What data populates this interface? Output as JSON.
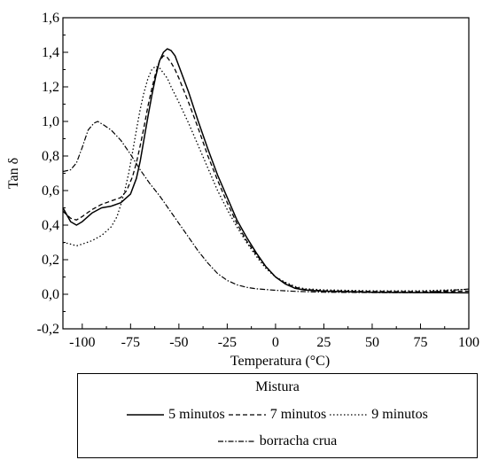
{
  "chart_data": {
    "type": "line",
    "title": "",
    "xlabel": "Temperatura (°C)",
    "ylabel": "Tan δ",
    "xlim": [
      -110,
      100
    ],
    "ylim": [
      -0.2,
      1.6
    ],
    "xticks": [
      -100,
      -75,
      -50,
      -25,
      0,
      25,
      50,
      75,
      100
    ],
    "xtick_labels": [
      "-100",
      "-75",
      "-50",
      "-25",
      "0",
      "25",
      "50",
      "75",
      "100"
    ],
    "yticks": [
      -0.2,
      0.0,
      0.2,
      0.4,
      0.6,
      0.8,
      1.0,
      1.2,
      1.4,
      1.6
    ],
    "ytick_labels": [
      "-0,2",
      "0,0",
      "0,2",
      "0,4",
      "0,6",
      "0,8",
      "1,0",
      "1,2",
      "1,4",
      "1,6"
    ],
    "grid": false,
    "legend_title": "Mistura",
    "legend_position": "below",
    "series": [
      {
        "name": "5 minutos",
        "dash": "solid",
        "points": [
          [
            -110,
            0.5
          ],
          [
            -106,
            0.42
          ],
          [
            -103,
            0.4
          ],
          [
            -100,
            0.42
          ],
          [
            -95,
            0.47
          ],
          [
            -90,
            0.5
          ],
          [
            -85,
            0.51
          ],
          [
            -80,
            0.53
          ],
          [
            -75,
            0.58
          ],
          [
            -72,
            0.67
          ],
          [
            -70,
            0.77
          ],
          [
            -68,
            0.9
          ],
          [
            -66,
            1.03
          ],
          [
            -64,
            1.15
          ],
          [
            -62,
            1.26
          ],
          [
            -60,
            1.35
          ],
          [
            -58,
            1.4
          ],
          [
            -56,
            1.42
          ],
          [
            -54,
            1.41
          ],
          [
            -52,
            1.38
          ],
          [
            -50,
            1.32
          ],
          [
            -45,
            1.17
          ],
          [
            -40,
            1.0
          ],
          [
            -35,
            0.84
          ],
          [
            -30,
            0.69
          ],
          [
            -25,
            0.56
          ],
          [
            -20,
            0.43
          ],
          [
            -15,
            0.33
          ],
          [
            -10,
            0.24
          ],
          [
            -5,
            0.16
          ],
          [
            0,
            0.1
          ],
          [
            5,
            0.06
          ],
          [
            10,
            0.035
          ],
          [
            15,
            0.025
          ],
          [
            25,
            0.018
          ],
          [
            50,
            0.012
          ],
          [
            75,
            0.01
          ],
          [
            100,
            0.008
          ]
        ]
      },
      {
        "name": "7 minutos",
        "dash": "dashed",
        "points": [
          [
            -110,
            0.48
          ],
          [
            -106,
            0.44
          ],
          [
            -103,
            0.43
          ],
          [
            -100,
            0.45
          ],
          [
            -95,
            0.49
          ],
          [
            -90,
            0.52
          ],
          [
            -85,
            0.54
          ],
          [
            -80,
            0.56
          ],
          [
            -77,
            0.6
          ],
          [
            -74,
            0.68
          ],
          [
            -72,
            0.76
          ],
          [
            -70,
            0.86
          ],
          [
            -68,
            0.97
          ],
          [
            -66,
            1.09
          ],
          [
            -64,
            1.19
          ],
          [
            -62,
            1.28
          ],
          [
            -60,
            1.35
          ],
          [
            -58,
            1.38
          ],
          [
            -56,
            1.37
          ],
          [
            -54,
            1.34
          ],
          [
            -52,
            1.3
          ],
          [
            -50,
            1.25
          ],
          [
            -45,
            1.11
          ],
          [
            -40,
            0.96
          ],
          [
            -35,
            0.8
          ],
          [
            -30,
            0.66
          ],
          [
            -25,
            0.53
          ],
          [
            -20,
            0.41
          ],
          [
            -15,
            0.31
          ],
          [
            -10,
            0.23
          ],
          [
            -5,
            0.16
          ],
          [
            0,
            0.1
          ],
          [
            5,
            0.065
          ],
          [
            10,
            0.04
          ],
          [
            15,
            0.028
          ],
          [
            25,
            0.02
          ],
          [
            50,
            0.016
          ],
          [
            75,
            0.015
          ],
          [
            100,
            0.018
          ]
        ]
      },
      {
        "name": "9 minutos",
        "dash": "dotted",
        "points": [
          [
            -110,
            0.3
          ],
          [
            -106,
            0.29
          ],
          [
            -103,
            0.28
          ],
          [
            -100,
            0.29
          ],
          [
            -95,
            0.31
          ],
          [
            -90,
            0.34
          ],
          [
            -85,
            0.39
          ],
          [
            -82,
            0.45
          ],
          [
            -80,
            0.52
          ],
          [
            -78,
            0.6
          ],
          [
            -76,
            0.7
          ],
          [
            -74,
            0.82
          ],
          [
            -72,
            0.95
          ],
          [
            -70,
            1.07
          ],
          [
            -68,
            1.17
          ],
          [
            -66,
            1.25
          ],
          [
            -64,
            1.3
          ],
          [
            -62,
            1.32
          ],
          [
            -60,
            1.31
          ],
          [
            -58,
            1.28
          ],
          [
            -56,
            1.25
          ],
          [
            -54,
            1.2
          ],
          [
            -50,
            1.11
          ],
          [
            -45,
            0.99
          ],
          [
            -40,
            0.86
          ],
          [
            -35,
            0.73
          ],
          [
            -30,
            0.6
          ],
          [
            -25,
            0.49
          ],
          [
            -20,
            0.39
          ],
          [
            -15,
            0.3
          ],
          [
            -10,
            0.22
          ],
          [
            -5,
            0.15
          ],
          [
            0,
            0.1
          ],
          [
            5,
            0.07
          ],
          [
            10,
            0.045
          ],
          [
            15,
            0.032
          ],
          [
            25,
            0.025
          ],
          [
            50,
            0.02
          ],
          [
            75,
            0.02
          ],
          [
            100,
            0.028
          ]
        ]
      },
      {
        "name": "borracha crua",
        "dash": "dashdot",
        "points": [
          [
            -110,
            0.71
          ],
          [
            -106,
            0.72
          ],
          [
            -103,
            0.76
          ],
          [
            -100,
            0.85
          ],
          [
            -97,
            0.95
          ],
          [
            -94,
            0.99
          ],
          [
            -92,
            1.0
          ],
          [
            -89,
            0.98
          ],
          [
            -85,
            0.95
          ],
          [
            -80,
            0.89
          ],
          [
            -75,
            0.81
          ],
          [
            -70,
            0.72
          ],
          [
            -65,
            0.64
          ],
          [
            -60,
            0.57
          ],
          [
            -55,
            0.49
          ],
          [
            -50,
            0.41
          ],
          [
            -45,
            0.33
          ],
          [
            -40,
            0.25
          ],
          [
            -35,
            0.18
          ],
          [
            -30,
            0.12
          ],
          [
            -25,
            0.08
          ],
          [
            -20,
            0.055
          ],
          [
            -15,
            0.04
          ],
          [
            -10,
            0.032
          ],
          [
            -5,
            0.027
          ],
          [
            0,
            0.023
          ],
          [
            10,
            0.017
          ],
          [
            25,
            0.012
          ],
          [
            50,
            0.01
          ],
          [
            75,
            0.01
          ],
          [
            100,
            0.03
          ]
        ]
      }
    ]
  }
}
